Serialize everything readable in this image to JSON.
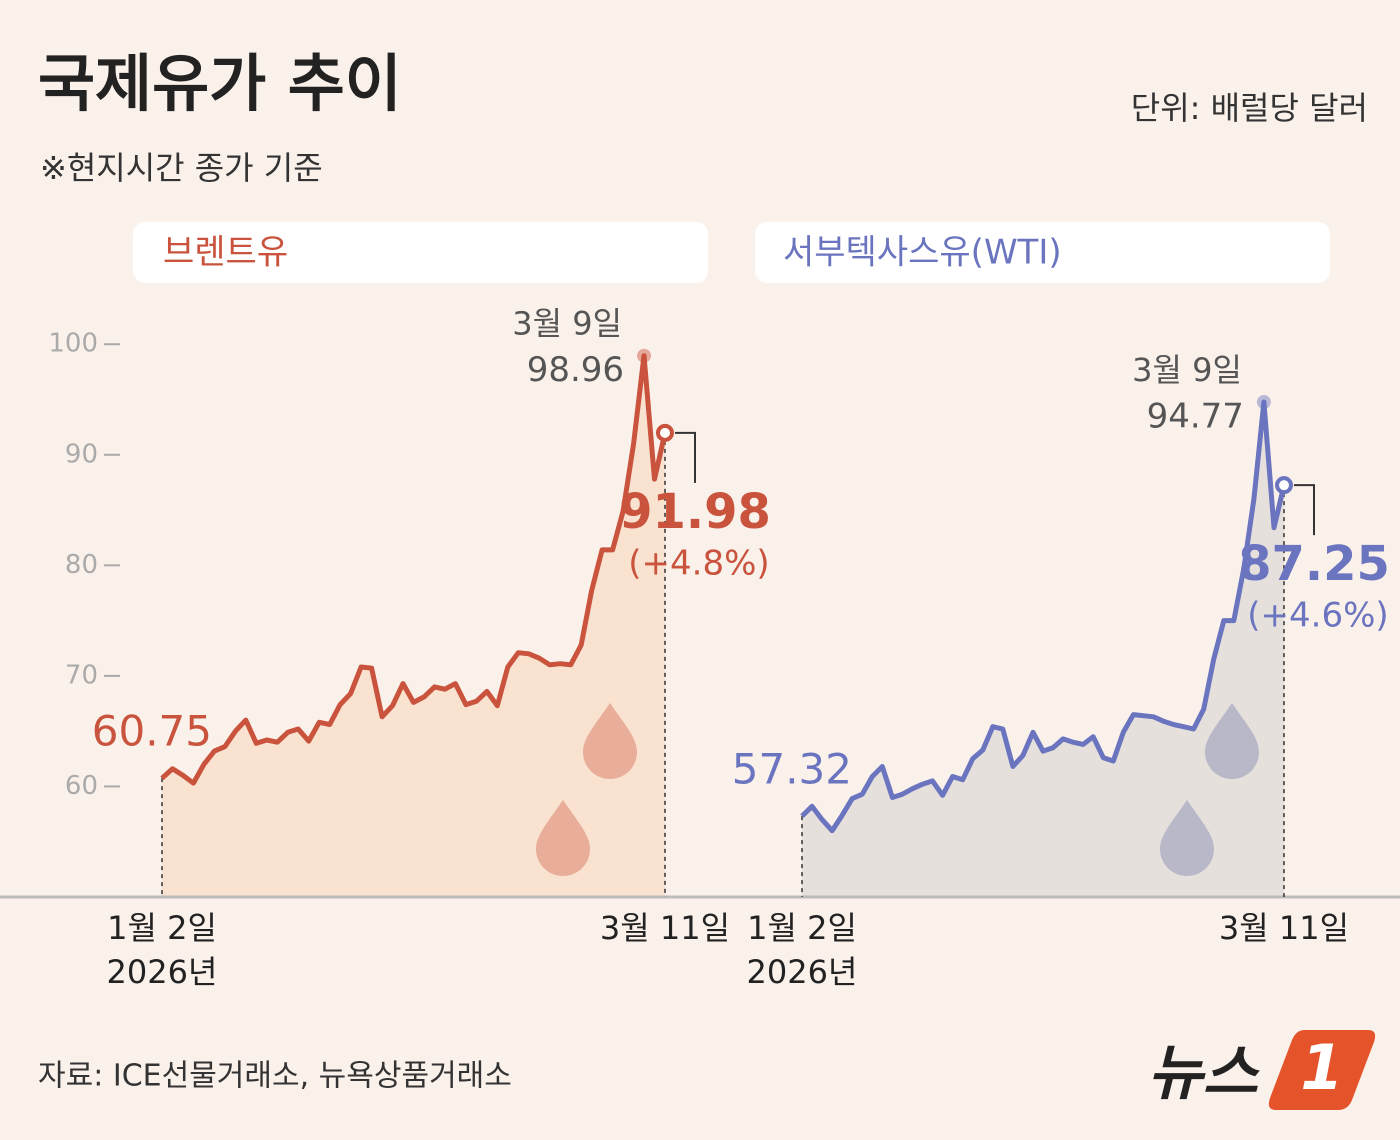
{
  "header": {
    "title": "국제유가 추이",
    "subtitle": "※현지시간 종가 기준",
    "unit": "단위: 배럴당 달러"
  },
  "chart_data": [
    {
      "type": "line",
      "title": "브렌트유",
      "color": "#c9533c",
      "fill": "#f9e2cf",
      "categories": [
        "1월 2일",
        null,
        null,
        null,
        null,
        null,
        null,
        null,
        null,
        null,
        null,
        null,
        null,
        null,
        null,
        null,
        null,
        null,
        null,
        null,
        null,
        null,
        null,
        null,
        null,
        null,
        null,
        null,
        null,
        null,
        null,
        null,
        null,
        null,
        null,
        null,
        null,
        null,
        null,
        null,
        null,
        null,
        null,
        null,
        null,
        null,
        null,
        null,
        "3월 11일"
      ],
      "start_year": "2026년",
      "values": [
        60.75,
        61.6,
        61.0,
        60.3,
        62.0,
        63.2,
        63.6,
        65.0,
        66.0,
        63.9,
        64.2,
        64.0,
        64.9,
        65.2,
        64.1,
        65.8,
        65.6,
        67.4,
        68.4,
        70.8,
        70.7,
        66.3,
        67.3,
        69.3,
        67.6,
        68.1,
        69.0,
        68.8,
        69.3,
        67.4,
        67.7,
        68.6,
        67.3,
        70.8,
        72.1,
        72.0,
        71.6,
        71.0,
        71.1,
        71.0,
        72.8,
        77.7,
        81.4,
        81.4,
        84.9,
        91.0,
        98.96,
        87.8,
        91.98
      ],
      "peak_date": "3월 9일",
      "change_label": "(+4.8%)",
      "ylim": [
        50,
        104
      ],
      "yticks": [
        60,
        70,
        80,
        90,
        100
      ]
    },
    {
      "type": "line",
      "title": "서부텍사스유(WTI)",
      "color": "#6a74bf",
      "fill": "#e6e0dd",
      "categories": [
        "1월 2일",
        null,
        null,
        null,
        null,
        null,
        null,
        null,
        null,
        null,
        null,
        null,
        null,
        null,
        null,
        null,
        null,
        null,
        null,
        null,
        null,
        null,
        null,
        null,
        null,
        null,
        null,
        null,
        null,
        null,
        null,
        null,
        null,
        null,
        null,
        null,
        null,
        null,
        null,
        null,
        null,
        null,
        null,
        null,
        null,
        null,
        null,
        null,
        "3월 11일"
      ],
      "start_year": "2026년",
      "values": [
        57.32,
        58.2,
        57.0,
        56.0,
        57.4,
        58.9,
        59.3,
        60.9,
        61.8,
        59.0,
        59.3,
        59.8,
        60.2,
        60.5,
        59.2,
        60.9,
        60.6,
        62.5,
        63.3,
        65.4,
        65.2,
        61.8,
        62.8,
        64.9,
        63.2,
        63.5,
        64.3,
        64.0,
        63.8,
        64.5,
        62.6,
        62.3,
        64.9,
        66.5,
        66.4,
        66.3,
        65.9,
        65.6,
        65.4,
        65.2,
        67.0,
        71.5,
        75.0,
        75.0,
        79.7,
        86.0,
        94.77,
        83.4,
        87.25
      ],
      "peak_date": "3월 9일",
      "change_label": "(+4.6%)",
      "ylim": [
        50,
        104
      ]
    }
  ],
  "source": "자료:  ICE선물거래소, 뉴욕상품거래소",
  "logo": {
    "text": "뉴스",
    "number": "1"
  }
}
